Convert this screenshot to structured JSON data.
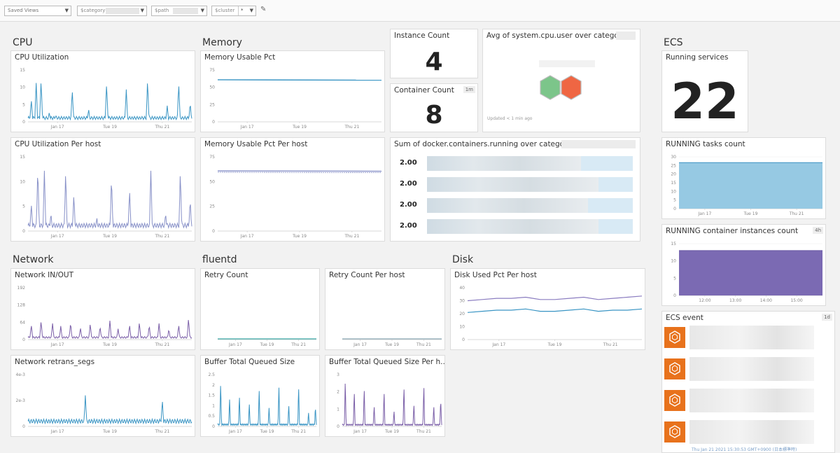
{
  "topbar": {
    "saved_views": "Saved Views",
    "category_var": "$category",
    "path_var": "$path",
    "cluster_var": "$cluster",
    "cluster_value": "*"
  },
  "groups": {
    "cpu": "CPU",
    "memory": "Memory",
    "network": "Network",
    "fluentd": "fluentd",
    "disk": "Disk",
    "ecs": "ECS"
  },
  "widgets": {
    "cpu_util": {
      "title": "CPU Utilization",
      "y_ticks": [
        "15",
        "10",
        "5",
        "0"
      ],
      "x_ticks": [
        "Jan 17",
        "Tue 19",
        "Thu 21"
      ],
      "ymax": 16,
      "color": "#3a95c4",
      "baseline": 1.2,
      "spikes": [
        [
          0.02,
          7
        ],
        [
          0.05,
          12
        ],
        [
          0.08,
          13
        ],
        [
          0.13,
          3
        ],
        [
          0.17,
          2
        ],
        [
          0.27,
          10
        ],
        [
          0.37,
          4
        ],
        [
          0.48,
          12
        ],
        [
          0.6,
          10
        ],
        [
          0.73,
          13
        ],
        [
          0.85,
          5
        ],
        [
          0.92,
          12
        ],
        [
          0.99,
          6
        ]
      ]
    },
    "cpu_util_host": {
      "title": "CPU Utilization Per host",
      "y_ticks": [
        "15",
        "10",
        "5",
        "0"
      ],
      "x_ticks": [
        "Jan 17",
        "Tue 19",
        "Thu 21"
      ],
      "ymax": 16,
      "color": "#8891c8",
      "baseline": 1.2,
      "spikes": [
        [
          0.02,
          6
        ],
        [
          0.06,
          14
        ],
        [
          0.1,
          13
        ],
        [
          0.14,
          4
        ],
        [
          0.23,
          13
        ],
        [
          0.28,
          8
        ],
        [
          0.42,
          3
        ],
        [
          0.51,
          12
        ],
        [
          0.62,
          9
        ],
        [
          0.75,
          13
        ],
        [
          0.84,
          4
        ],
        [
          0.93,
          13
        ],
        [
          0.99,
          7
        ]
      ]
    },
    "mem_usable": {
      "title": "Memory Usable Pct",
      "y_ticks": [
        "75",
        "50",
        "25",
        "0"
      ],
      "x_ticks": [
        "Jan 17",
        "Tue 19",
        "Thu 21"
      ],
      "ymax": 90,
      "color": "#3a95c4",
      "flat": 73
    },
    "mem_usable_host": {
      "title": "Memory Usable Pct Per host",
      "y_ticks": [
        "75",
        "50",
        "25",
        "0"
      ],
      "x_ticks": [
        "Jan 17",
        "Tue 19",
        "Thu 21"
      ],
      "ymax": 90,
      "color": "#8891c8",
      "flat": 73
    },
    "instance_count": {
      "title": "Instance Count",
      "value": "4"
    },
    "container_count": {
      "title": "Container Count",
      "badge": "1m",
      "value": "8"
    },
    "avg_cpu_user": {
      "title": "Avg of system.cpu.user over category:",
      "updated": "Updated < 1 min ago",
      "colors": [
        "#7cc58a",
        "#ef6643"
      ]
    },
    "sum_containers": {
      "title": "Sum of docker.containers.running over category:",
      "rows": [
        "2.00",
        "2.00",
        "2.00",
        "2.00"
      ]
    },
    "ecs_running_services": {
      "title": "Running services",
      "value": "22"
    },
    "running_tasks": {
      "title": "RUNNING tasks count",
      "y_ticks": [
        "30",
        "25",
        "20",
        "15",
        "10",
        "5",
        "0"
      ],
      "x_ticks": [
        "Jan 17",
        "Tue 19",
        "Thu 21"
      ],
      "ymax": 36,
      "color": "#96c9e3",
      "flat": 32
    },
    "running_instances": {
      "title": "RUNNING container instances count",
      "badge": "4h",
      "y_ticks": [
        "15",
        "10",
        "5",
        "0"
      ],
      "x_ticks": [
        "12:00",
        "13:00",
        "14:00",
        "15:00"
      ],
      "ymax": 15,
      "color": "#7b6ab3",
      "flat": 13
    },
    "network_io": {
      "title": "Network IN/OUT",
      "y_ticks": [
        "192",
        "128",
        "64",
        "0"
      ],
      "x_ticks": [
        "Jan 17",
        "Tue 19",
        "Thu 21"
      ],
      "ymax": 192,
      "color": "#7b5fa8",
      "baseline": 8,
      "spikes": [
        [
          0.02,
          55
        ],
        [
          0.08,
          70
        ],
        [
          0.15,
          60
        ],
        [
          0.2,
          50
        ],
        [
          0.26,
          65
        ],
        [
          0.32,
          45
        ],
        [
          0.38,
          60
        ],
        [
          0.44,
          50
        ],
        [
          0.5,
          70
        ],
        [
          0.55,
          40
        ],
        [
          0.62,
          55
        ],
        [
          0.68,
          65
        ],
        [
          0.74,
          55
        ],
        [
          0.8,
          60
        ],
        [
          0.86,
          40
        ],
        [
          0.92,
          55
        ],
        [
          0.98,
          80
        ]
      ]
    },
    "network_retrans": {
      "title": "Network retrans_segs",
      "y_ticks": [
        "4e-3",
        "2e-3",
        "0"
      ],
      "x_ticks": [
        "Jan 17",
        "Tue 19",
        "Thu 21"
      ],
      "ymax": 5,
      "color": "#3a95c4",
      "baseline": 0.5,
      "spikes": [
        [
          0.35,
          3
        ],
        [
          0.82,
          2.6
        ]
      ]
    },
    "retry_count": {
      "title": "Retry Count",
      "x_ticks": [
        "Jan 17",
        "Tue 19",
        "Thu 21"
      ],
      "color": "#3aa7a6"
    },
    "retry_count_host": {
      "title": "Retry Count Per host",
      "x_ticks": [
        "Jan 17",
        "Tue 19",
        "Thu 21"
      ],
      "color": "#8aa7b5"
    },
    "buffer_queued": {
      "title": "Buffer Total Queued Size",
      "y_ticks": [
        "2.5",
        "2",
        "1.5",
        "1",
        "0.5",
        "0"
      ],
      "x_ticks": [
        "Jan 17",
        "Tue 19",
        "Thu 21"
      ],
      "ymax": 2.8,
      "color": "#3a95c4",
      "baseline": 0.1,
      "spikes": [
        [
          0.03,
          2.4
        ],
        [
          0.12,
          1.6
        ],
        [
          0.22,
          1.7
        ],
        [
          0.32,
          1.3
        ],
        [
          0.42,
          2.1
        ],
        [
          0.52,
          1.1
        ],
        [
          0.62,
          2.3
        ],
        [
          0.72,
          1.2
        ],
        [
          0.82,
          2.2
        ],
        [
          0.92,
          0.8
        ],
        [
          0.99,
          1.1
        ]
      ]
    },
    "buffer_queued_host": {
      "title": "Buffer Total Queued Size Per h...",
      "y_ticks": [
        "3",
        "2",
        "1",
        "0"
      ],
      "x_ticks": [
        "Jan 17",
        "Tue 19",
        "Thu 21"
      ],
      "ymax": 3.2,
      "color": "#7b5fa8",
      "baseline": 0.1,
      "spikes": [
        [
          0.03,
          2.9
        ],
        [
          0.12,
          2.2
        ],
        [
          0.22,
          2.4
        ],
        [
          0.32,
          1.3
        ],
        [
          0.42,
          2.2
        ],
        [
          0.52,
          1.0
        ],
        [
          0.62,
          2.5
        ],
        [
          0.72,
          1.4
        ],
        [
          0.82,
          2.6
        ],
        [
          0.92,
          1.3
        ],
        [
          0.99,
          1.7
        ]
      ]
    },
    "disk_used_host": {
      "title": "Disk Used Pct Per host",
      "y_ticks": [
        "40",
        "30",
        "20",
        "10",
        "0"
      ],
      "x_ticks": [
        "Jan 17",
        "Tue 19",
        "Thu 21"
      ],
      "ymax": 44,
      "lines": [
        {
          "color": "#8a7cc0",
          "values": [
            33,
            34,
            35,
            35,
            36,
            34,
            34,
            35,
            36,
            34,
            35,
            36,
            37
          ]
        },
        {
          "color": "#3a95c4",
          "values": [
            23,
            24,
            25,
            25,
            26,
            24,
            24,
            25,
            26,
            24,
            25,
            25,
            26
          ]
        }
      ]
    },
    "ecs_event": {
      "title": "ECS event",
      "badge": "1d",
      "footer": "Thu Jan 21 2021 15:30:53 GMT+0900 (日本標準時)"
    }
  }
}
